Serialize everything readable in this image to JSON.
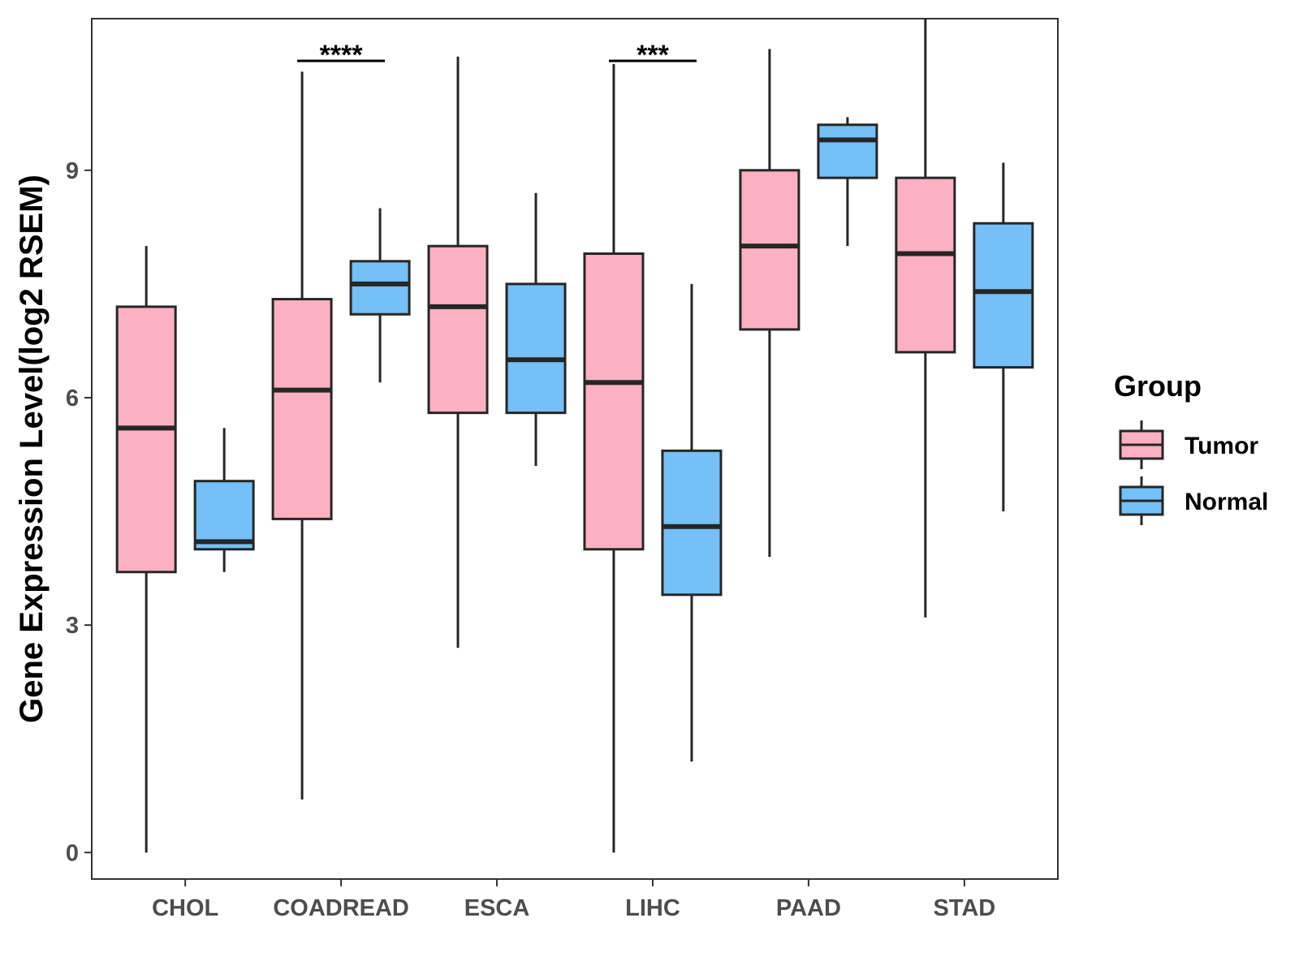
{
  "chart_data": {
    "type": "boxplot",
    "title": "",
    "xlabel": "",
    "ylabel": "Gene Expression Level(log2 RSEM)",
    "ylim": [
      -0.35,
      11.0
    ],
    "yticks": [
      0,
      3,
      6,
      9
    ],
    "categories": [
      "CHOL",
      "COADREAD",
      "ESCA",
      "LIHC",
      "PAAD",
      "STAD"
    ],
    "series": [
      {
        "name": "Tumor",
        "color": "#FBB1C2",
        "boxes": [
          {
            "min": 0.0,
            "q1": 3.7,
            "median": 5.6,
            "q3": 7.2,
            "max": 8.0
          },
          {
            "min": 0.7,
            "q1": 4.4,
            "median": 6.1,
            "q3": 7.3,
            "max": 10.3
          },
          {
            "min": 2.7,
            "q1": 5.8,
            "median": 7.2,
            "q3": 8.0,
            "max": 10.5
          },
          {
            "min": 0.0,
            "q1": 4.0,
            "median": 6.2,
            "q3": 7.9,
            "max": 10.4
          },
          {
            "min": 3.9,
            "q1": 6.9,
            "median": 8.0,
            "q3": 9.0,
            "max": 10.6
          },
          {
            "min": 3.1,
            "q1": 6.6,
            "median": 7.9,
            "q3": 8.9,
            "max": 11.0
          }
        ]
      },
      {
        "name": "Normal",
        "color": "#74C0F7",
        "boxes": [
          {
            "min": 3.7,
            "q1": 4.0,
            "median": 4.1,
            "q3": 4.9,
            "max": 5.6
          },
          {
            "min": 6.2,
            "q1": 7.1,
            "median": 7.5,
            "q3": 7.8,
            "max": 8.5
          },
          {
            "min": 5.1,
            "q1": 5.8,
            "median": 6.5,
            "q3": 7.5,
            "max": 8.7
          },
          {
            "min": 1.2,
            "q1": 3.4,
            "median": 4.3,
            "q3": 5.3,
            "max": 7.5
          },
          {
            "min": 8.0,
            "q1": 8.9,
            "median": 9.4,
            "q3": 9.6,
            "max": 9.7
          },
          {
            "min": 4.5,
            "q1": 6.4,
            "median": 7.4,
            "q3": 8.3,
            "max": 9.1
          }
        ]
      }
    ],
    "significance": [
      {
        "category": "COADREAD",
        "label": "****"
      },
      {
        "category": "LIHC",
        "label": "***"
      }
    ],
    "legend": {
      "title": "Group",
      "position": "right",
      "entries": [
        "Tumor",
        "Normal"
      ]
    }
  }
}
